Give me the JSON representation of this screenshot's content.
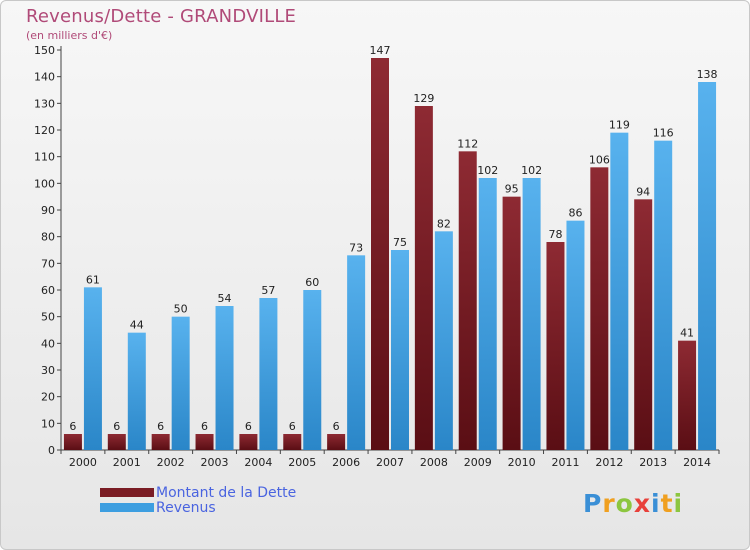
{
  "chart_data": {
    "type": "bar",
    "title": "Revenus/Dette - GRANDVILLE",
    "subtitle": "(en milliers d'€)",
    "categories": [
      "2000",
      "2001",
      "2002",
      "2003",
      "2004",
      "2005",
      "2006",
      "2007",
      "2008",
      "2009",
      "2010",
      "2011",
      "2012",
      "2013",
      "2014"
    ],
    "series": [
      {
        "name": "Montant de la Dette",
        "color": "#7a1c24",
        "values": [
          6,
          6,
          6,
          6,
          6,
          6,
          6,
          147,
          129,
          112,
          95,
          78,
          106,
          94,
          41
        ]
      },
      {
        "name": "Revenus",
        "color": "#3d9ee0",
        "values": [
          61,
          44,
          50,
          54,
          57,
          60,
          73,
          75,
          82,
          102,
          102,
          86,
          119,
          116,
          138
        ]
      }
    ],
    "ylim": [
      0,
      150
    ],
    "yticks": [
      0,
      10,
      20,
      30,
      40,
      50,
      60,
      70,
      80,
      90,
      100,
      110,
      120,
      130,
      140,
      150
    ],
    "grid": false,
    "legend_position": "bottom-left"
  },
  "logo": {
    "text": "Proxiti"
  }
}
